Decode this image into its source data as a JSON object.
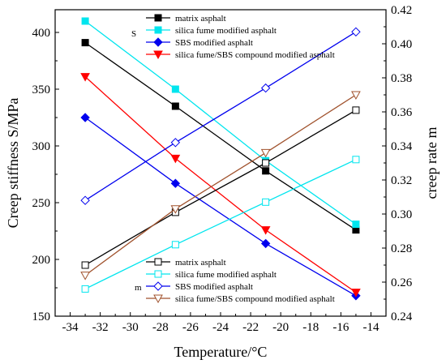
{
  "chart_data": {
    "type": "line",
    "x": [
      -33,
      -27,
      -21,
      -15
    ],
    "xlabel": "Temperature/°C",
    "xlim": [
      -35,
      -13
    ],
    "xticks": [
      -34,
      -32,
      -30,
      -28,
      -26,
      -24,
      -22,
      -20,
      -18,
      -16,
      -14
    ],
    "y_left": {
      "label": "Creep stiffness S/MPa",
      "lim": [
        150,
        420
      ],
      "ticks": [
        150,
        200,
        250,
        300,
        350,
        400
      ]
    },
    "y_right": {
      "label": "creep rate m",
      "lim": [
        0.24,
        0.42
      ],
      "ticks": [
        0.24,
        0.26,
        0.28,
        0.3,
        0.32,
        0.34,
        0.36,
        0.38,
        0.4,
        0.42
      ],
      "tick_labels": [
        "0.24",
        "0.26",
        "0.28",
        "0.30",
        "0.32",
        "0.34",
        "0.36",
        "0.38",
        "0.40",
        "0.42"
      ]
    },
    "group_tags": {
      "s": "S",
      "m": "m"
    },
    "series": [
      {
        "name": "matrix asphalt",
        "axis": "left",
        "marker": "square",
        "filled": true,
        "color": "#000000",
        "values": [
          391,
          335,
          278,
          226
        ]
      },
      {
        "name": "silica fume modified asphalt",
        "axis": "left",
        "marker": "square",
        "filled": true,
        "color": "#00e5ee",
        "values": [
          410,
          350,
          287,
          231
        ]
      },
      {
        "name": "SBS modified asphalt",
        "axis": "left",
        "marker": "diamond",
        "filled": true,
        "color": "#0000ee",
        "values": [
          325,
          267,
          214,
          168
        ]
      },
      {
        "name": "silica fume/SBS compound modified asphalt",
        "axis": "left",
        "marker": "triangle-down",
        "filled": true,
        "color": "#ff0000",
        "values": [
          361,
          289,
          226,
          171
        ]
      },
      {
        "name": "matrix asphalt",
        "axis": "right",
        "marker": "square",
        "filled": false,
        "color": "#000000",
        "values": [
          0.27,
          0.301,
          0.33,
          0.361
        ]
      },
      {
        "name": "silica fume modified asphalt",
        "axis": "right",
        "marker": "square",
        "filled": false,
        "color": "#00e5ee",
        "values": [
          0.256,
          0.282,
          0.307,
          0.332
        ]
      },
      {
        "name": "SBS modified asphalt",
        "axis": "right",
        "marker": "diamond",
        "filled": false,
        "color": "#0000ee",
        "values": [
          0.308,
          0.342,
          0.374,
          0.407
        ]
      },
      {
        "name": "silica fume/SBS compound modified asphalt",
        "axis": "right",
        "marker": "triangle-down",
        "filled": false,
        "color": "#a0522d",
        "values": [
          0.264,
          0.303,
          0.336,
          0.37
        ]
      }
    ],
    "legend_s_placement": "top-center",
    "legend_m_placement": "bottom-center",
    "grid": false
  }
}
